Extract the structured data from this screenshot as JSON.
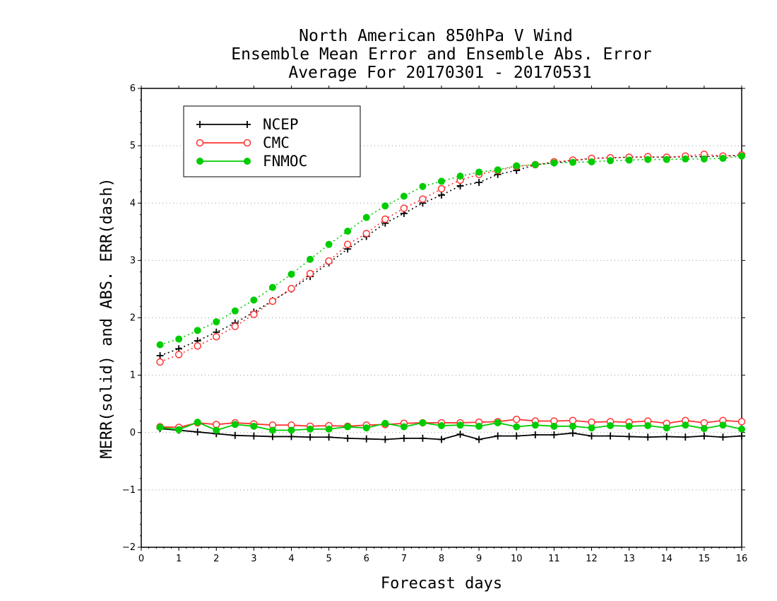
{
  "chart_data": {
    "type": "line",
    "title_lines": [
      "North American 850hPa V Wind",
      "Ensemble Mean Error and Ensemble Abs. Error",
      "Average For 20170301 - 20170531"
    ],
    "xlabel": "Forecast days",
    "ylabel": "MERR(solid) and ABS. ERR(dash)",
    "xlim": [
      0,
      16
    ],
    "ylim": [
      -2,
      6
    ],
    "xticks": [
      0,
      1,
      2,
      3,
      4,
      5,
      6,
      7,
      8,
      9,
      10,
      11,
      12,
      13,
      14,
      15,
      16
    ],
    "yticks": [
      -2,
      -1,
      0,
      1,
      2,
      3,
      4,
      5,
      6
    ],
    "ytick_labels": [
      "−2",
      "−1",
      "0",
      "1",
      "2",
      "3",
      "4",
      "5",
      "6"
    ],
    "grid": "horizontal dotted",
    "legend_position": "top-left",
    "x": [
      0.5,
      1,
      1.5,
      2,
      2.5,
      3,
      3.5,
      4,
      4.5,
      5,
      5.5,
      6,
      6.5,
      7,
      7.5,
      8,
      8.5,
      9,
      9.5,
      10,
      10.5,
      11,
      11.5,
      12,
      12.5,
      13,
      13.5,
      14,
      14.5,
      15,
      15.5,
      16
    ],
    "series": [
      {
        "name": "NCEP",
        "color": "#000000",
        "marker": "plus",
        "merr": [
          0.07,
          0.04,
          0.01,
          -0.02,
          -0.05,
          -0.06,
          -0.07,
          -0.07,
          -0.08,
          -0.08,
          -0.1,
          -0.11,
          -0.12,
          -0.1,
          -0.1,
          -0.12,
          -0.03,
          -0.12,
          -0.06,
          -0.06,
          -0.04,
          -0.04,
          -0.01,
          -0.06,
          -0.06,
          -0.07,
          -0.08,
          -0.07,
          -0.08,
          -0.06,
          -0.08,
          -0.06
        ],
        "abs_err": [
          1.34,
          1.46,
          1.6,
          1.75,
          1.91,
          2.1,
          2.3,
          2.5,
          2.72,
          2.96,
          3.2,
          3.42,
          3.65,
          3.82,
          4.0,
          4.14,
          4.3,
          4.36,
          4.5,
          4.57,
          4.67,
          4.7,
          4.74,
          4.78,
          4.79,
          4.8,
          4.8,
          4.8,
          4.81,
          4.81,
          4.82,
          4.83
        ]
      },
      {
        "name": "CMC",
        "color": "#ff3333",
        "marker": "open-circle",
        "merr": [
          0.1,
          0.09,
          0.17,
          0.14,
          0.17,
          0.15,
          0.13,
          0.13,
          0.11,
          0.12,
          0.11,
          0.13,
          0.14,
          0.16,
          0.17,
          0.17,
          0.17,
          0.18,
          0.19,
          0.23,
          0.2,
          0.2,
          0.21,
          0.18,
          0.19,
          0.18,
          0.2,
          0.16,
          0.21,
          0.17,
          0.21,
          0.19
        ],
        "abs_err": [
          1.23,
          1.36,
          1.51,
          1.67,
          1.85,
          2.06,
          2.29,
          2.51,
          2.77,
          2.99,
          3.28,
          3.47,
          3.72,
          3.91,
          4.07,
          4.25,
          4.4,
          4.5,
          4.57,
          4.64,
          4.67,
          4.72,
          4.75,
          4.78,
          4.79,
          4.8,
          4.81,
          4.8,
          4.82,
          4.85,
          4.82,
          4.84
        ]
      },
      {
        "name": "FNMOC",
        "color": "#00cc00",
        "marker": "filled-circle",
        "merr": [
          0.09,
          0.05,
          0.18,
          0.04,
          0.14,
          0.11,
          0.04,
          0.04,
          0.06,
          0.06,
          0.1,
          0.08,
          0.16,
          0.1,
          0.17,
          0.12,
          0.13,
          0.11,
          0.17,
          0.1,
          0.13,
          0.11,
          0.11,
          0.08,
          0.12,
          0.11,
          0.12,
          0.08,
          0.13,
          0.07,
          0.13,
          0.06
        ],
        "abs_err": [
          1.53,
          1.63,
          1.78,
          1.93,
          2.12,
          2.31,
          2.53,
          2.76,
          3.02,
          3.28,
          3.51,
          3.75,
          3.95,
          4.12,
          4.29,
          4.38,
          4.47,
          4.54,
          4.58,
          4.65,
          4.67,
          4.7,
          4.71,
          4.72,
          4.74,
          4.75,
          4.76,
          4.76,
          4.77,
          4.77,
          4.78,
          4.82
        ]
      }
    ]
  }
}
